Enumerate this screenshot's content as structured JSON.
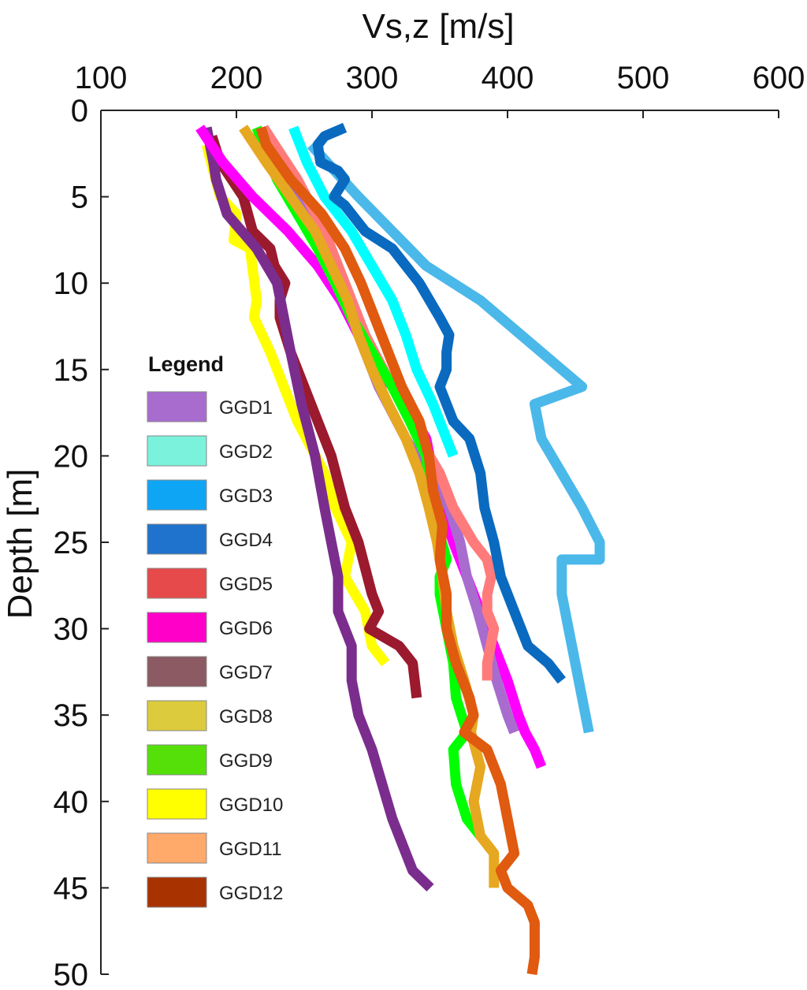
{
  "chart_data": {
    "type": "line",
    "title": "",
    "xlabel": "Vs,z [m/s]",
    "ylabel": "Depth [m]",
    "xlim": [
      100,
      600
    ],
    "ylim": [
      0,
      50
    ],
    "y_inverted": true,
    "x_axis_position": "top",
    "xticks": [
      "100",
      "200",
      "300",
      "400",
      "500",
      "600"
    ],
    "yticks": [
      "0",
      "5",
      "10",
      "15",
      "20",
      "25",
      "30",
      "35",
      "40",
      "45",
      "50"
    ],
    "xtick_values": [
      100,
      200,
      300,
      400,
      500,
      600
    ],
    "ytick_values": [
      0,
      5,
      10,
      15,
      20,
      25,
      30,
      35,
      40,
      45,
      50
    ],
    "grid": false,
    "legend": {
      "title": "Legend",
      "placement": "center-left",
      "entries": [
        {
          "label": "GGD1",
          "color": "#a86ccf"
        },
        {
          "label": "GGD2",
          "color": "#7af2dc"
        },
        {
          "label": "GGD3",
          "color": "#0fa5f5"
        },
        {
          "label": "GGD4",
          "color": "#1f73cc"
        },
        {
          "label": "GGD5",
          "color": "#e64a4a"
        },
        {
          "label": "GGD6",
          "color": "#ff00c8"
        },
        {
          "label": "GGD7",
          "color": "#8b5a63"
        },
        {
          "label": "GGD8",
          "color": "#dccb3c"
        },
        {
          "label": "GGD9",
          "color": "#55e00a"
        },
        {
          "label": "GGD10",
          "color": "#ffff00"
        },
        {
          "label": "GGD11",
          "color": "#ffa96b"
        },
        {
          "label": "GGD12",
          "color": "#a83200"
        }
      ]
    },
    "series": [
      {
        "color": "#ffff00",
        "points": [
          [
            178,
            2
          ],
          [
            183,
            3.5
          ],
          [
            188,
            5
          ],
          [
            200,
            6
          ],
          [
            198,
            7.5
          ],
          [
            210,
            8
          ],
          [
            215,
            11
          ],
          [
            213,
            12
          ],
          [
            225,
            14
          ],
          [
            245,
            18
          ],
          [
            265,
            21
          ],
          [
            273,
            23
          ],
          [
            285,
            25
          ],
          [
            280,
            27
          ],
          [
            295,
            29
          ],
          [
            300,
            31
          ],
          [
            310,
            32
          ]
        ]
      },
      {
        "color": "#9b1a2e",
        "points": [
          [
            182,
            1.5
          ],
          [
            188,
            3
          ],
          [
            205,
            5
          ],
          [
            212,
            7
          ],
          [
            225,
            8
          ],
          [
            228,
            9
          ],
          [
            236,
            10
          ],
          [
            232,
            11
          ],
          [
            232,
            12
          ],
          [
            240,
            14
          ],
          [
            255,
            17
          ],
          [
            270,
            20
          ],
          [
            280,
            23
          ],
          [
            290,
            25
          ],
          [
            300,
            28
          ],
          [
            305,
            29
          ],
          [
            298,
            30
          ],
          [
            320,
            31
          ],
          [
            330,
            32
          ],
          [
            333,
            34
          ]
        ]
      },
      {
        "color": "#7b2d8e",
        "points": [
          [
            178,
            1
          ],
          [
            183,
            3
          ],
          [
            185,
            4
          ],
          [
            193,
            6
          ],
          [
            215,
            8
          ],
          [
            230,
            10
          ],
          [
            235,
            12
          ],
          [
            240,
            14
          ],
          [
            248,
            17
          ],
          [
            258,
            20
          ],
          [
            265,
            23
          ],
          [
            270,
            25
          ],
          [
            275,
            27
          ],
          [
            275,
            29
          ],
          [
            285,
            31
          ],
          [
            285,
            33
          ],
          [
            290,
            35
          ],
          [
            300,
            37
          ],
          [
            315,
            41
          ],
          [
            330,
            44
          ],
          [
            343,
            45
          ]
        ]
      },
      {
        "color": "#ff00ff",
        "points": [
          [
            173,
            1
          ],
          [
            190,
            3
          ],
          [
            212,
            5
          ],
          [
            238,
            7
          ],
          [
            260,
            9
          ],
          [
            277,
            11
          ],
          [
            290,
            13
          ],
          [
            305,
            15
          ],
          [
            325,
            17
          ],
          [
            340,
            19
          ],
          [
            345,
            21
          ],
          [
            352,
            23
          ],
          [
            360,
            25
          ],
          [
            370,
            27
          ],
          [
            380,
            29
          ],
          [
            390,
            31
          ],
          [
            400,
            33
          ],
          [
            408,
            35
          ],
          [
            413,
            36
          ],
          [
            420,
            37
          ],
          [
            425,
            38
          ]
        ]
      },
      {
        "color": "#a86ccf",
        "points": [
          [
            220,
            1
          ],
          [
            240,
            4
          ],
          [
            260,
            7
          ],
          [
            275,
            10
          ],
          [
            290,
            13
          ],
          [
            305,
            16
          ],
          [
            325,
            19
          ],
          [
            340,
            21
          ],
          [
            357,
            23
          ],
          [
            365,
            25
          ],
          [
            370,
            27
          ],
          [
            378,
            29
          ],
          [
            385,
            31
          ],
          [
            392,
            33
          ],
          [
            400,
            35
          ],
          [
            405,
            36
          ]
        ]
      },
      {
        "color": "#ff7b7b",
        "points": [
          [
            220,
            1
          ],
          [
            245,
            4
          ],
          [
            265,
            7
          ],
          [
            280,
            10
          ],
          [
            295,
            13
          ],
          [
            315,
            16
          ],
          [
            335,
            19
          ],
          [
            350,
            21
          ],
          [
            360,
            23
          ],
          [
            375,
            25
          ],
          [
            385,
            26
          ],
          [
            388,
            27
          ],
          [
            385,
            28
          ],
          [
            385,
            29
          ],
          [
            390,
            30
          ],
          [
            385,
            32
          ],
          [
            385,
            33
          ]
        ]
      },
      {
        "color": "#00ff00",
        "points": [
          [
            215,
            1
          ],
          [
            230,
            4
          ],
          [
            245,
            6
          ],
          [
            260,
            8
          ],
          [
            273,
            10
          ],
          [
            285,
            12
          ],
          [
            300,
            14
          ],
          [
            315,
            16
          ],
          [
            328,
            18
          ],
          [
            340,
            20
          ],
          [
            343,
            22
          ],
          [
            348,
            24
          ],
          [
            355,
            26
          ],
          [
            350,
            27
          ],
          [
            350,
            28
          ],
          [
            355,
            30
          ],
          [
            360,
            32
          ],
          [
            362,
            34
          ],
          [
            370,
            36
          ],
          [
            360,
            37
          ],
          [
            362,
            39
          ],
          [
            370,
            41
          ],
          [
            380,
            42
          ]
        ]
      },
      {
        "color": "#e6a820",
        "points": [
          [
            205,
            1
          ],
          [
            222,
            3
          ],
          [
            240,
            5
          ],
          [
            258,
            7
          ],
          [
            270,
            9
          ],
          [
            282,
            11
          ],
          [
            290,
            13
          ],
          [
            300,
            15
          ],
          [
            312,
            17
          ],
          [
            325,
            19
          ],
          [
            335,
            21
          ],
          [
            342,
            23
          ],
          [
            348,
            25
          ],
          [
            352,
            27
          ],
          [
            355,
            29
          ],
          [
            360,
            31
          ],
          [
            368,
            33
          ],
          [
            375,
            35
          ],
          [
            373,
            36
          ],
          [
            380,
            38
          ],
          [
            375,
            40
          ],
          [
            380,
            42
          ],
          [
            390,
            43
          ],
          [
            390,
            45
          ]
        ]
      },
      {
        "color": "#e05a10",
        "points": [
          [
            218,
            1
          ],
          [
            222,
            2
          ],
          [
            240,
            4
          ],
          [
            263,
            6
          ],
          [
            280,
            8
          ],
          [
            292,
            10
          ],
          [
            302,
            12
          ],
          [
            312,
            14
          ],
          [
            322,
            16
          ],
          [
            335,
            18
          ],
          [
            342,
            20
          ],
          [
            345,
            22
          ],
          [
            352,
            24
          ],
          [
            350,
            26
          ],
          [
            355,
            28
          ],
          [
            355,
            30
          ],
          [
            362,
            32
          ],
          [
            372,
            34
          ],
          [
            375,
            35
          ],
          [
            368,
            36
          ],
          [
            385,
            37
          ],
          [
            395,
            39
          ],
          [
            400,
            41
          ],
          [
            405,
            43
          ],
          [
            395,
            44
          ],
          [
            400,
            45
          ],
          [
            415,
            46
          ],
          [
            420,
            47
          ],
          [
            420,
            48
          ],
          [
            420,
            49
          ],
          [
            418,
            50
          ]
        ]
      },
      {
        "color": "#00ffff",
        "points": [
          [
            242,
            1
          ],
          [
            252,
            3
          ],
          [
            265,
            5
          ],
          [
            285,
            7
          ],
          [
            300,
            9
          ],
          [
            315,
            11
          ],
          [
            325,
            13
          ],
          [
            333,
            15
          ],
          [
            345,
            17
          ],
          [
            355,
            19
          ],
          [
            360,
            20
          ]
        ]
      },
      {
        "color": "#4bb8ea",
        "points": [
          [
            255,
            2
          ],
          [
            290,
            5
          ],
          [
            315,
            7
          ],
          [
            340,
            9
          ],
          [
            360,
            10
          ],
          [
            380,
            11
          ],
          [
            410,
            13
          ],
          [
            440,
            15
          ],
          [
            455,
            16
          ],
          [
            420,
            17
          ],
          [
            425,
            19
          ],
          [
            440,
            21
          ],
          [
            455,
            23
          ],
          [
            468,
            25
          ],
          [
            468,
            26
          ],
          [
            440,
            26
          ],
          [
            440,
            28
          ],
          [
            445,
            30
          ],
          [
            450,
            32
          ],
          [
            455,
            34
          ],
          [
            460,
            36
          ]
        ]
      },
      {
        "color": "#0a6abf",
        "points": [
          [
            280,
            1
          ],
          [
            265,
            1.5
          ],
          [
            260,
            2
          ],
          [
            262,
            3
          ],
          [
            275,
            3.5
          ],
          [
            280,
            4
          ],
          [
            272,
            5
          ],
          [
            280,
            5.5
          ],
          [
            295,
            7
          ],
          [
            315,
            8
          ],
          [
            335,
            10
          ],
          [
            350,
            12
          ],
          [
            357,
            13
          ],
          [
            355,
            14
          ],
          [
            355,
            15
          ],
          [
            350,
            16
          ],
          [
            360,
            18
          ],
          [
            372,
            19
          ],
          [
            380,
            21
          ],
          [
            383,
            23
          ],
          [
            390,
            25
          ],
          [
            395,
            27
          ],
          [
            405,
            29
          ],
          [
            415,
            31
          ],
          [
            430,
            32
          ],
          [
            440,
            33
          ]
        ]
      }
    ]
  }
}
